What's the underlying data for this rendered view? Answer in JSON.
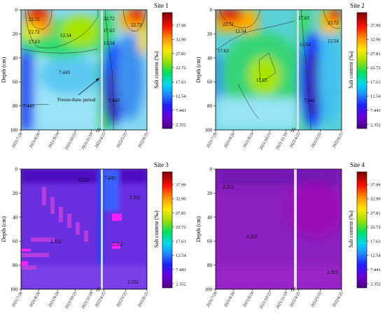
{
  "chart_data": [
    {
      "type": "heatmap",
      "title": "Site 1",
      "ylabel": "Depth (cm)",
      "ylim": [
        100,
        0
      ],
      "yticks": [
        0,
        20,
        40,
        60,
        80,
        100
      ],
      "xticks": [
        "2021/7/28",
        "2021/8/26",
        "2021/9/24",
        "2021/10/23",
        "2021/11/19",
        "2022/4/25",
        "2022/5/25",
        "2022/6/25"
      ],
      "colorbar_label": "Salt content (‰)",
      "colorbar_ticks": [
        37.99,
        32.9,
        27.81,
        22.72,
        17.63,
        12.54,
        7.443,
        2.352
      ],
      "contour_labels": [
        "22.72",
        "22.72",
        "17.63",
        "12.54",
        "22.72",
        "17.63",
        "22.72",
        "12.54",
        "7.443",
        "7.443",
        "7.443"
      ],
      "annotation": "Freeze-thaw period"
    },
    {
      "type": "heatmap",
      "title": "Site 2",
      "ylabel": "Depth (cm)",
      "ylim": [
        100,
        0
      ],
      "yticks": [
        0,
        20,
        40,
        60,
        80,
        100
      ],
      "xticks": [
        "2021/7/28",
        "2021/8/26",
        "2021/9/24",
        "2021/10/23",
        "2021/11/19",
        "2022/4/25",
        "2022/5/25",
        "2022/6/25"
      ],
      "colorbar_label": "Salt content (‰)",
      "colorbar_ticks": [
        37.99,
        32.9,
        27.81,
        22.72,
        17.63,
        12.54,
        7.443,
        2.352
      ],
      "contour_labels": [
        "22.72",
        "12.54",
        "17.63",
        "17.63",
        "17.63",
        "22.72",
        "12.54",
        "12.54",
        "7.443"
      ]
    },
    {
      "type": "heatmap",
      "title": "Site 3",
      "ylabel": "Depth (cm)",
      "ylim": [
        100,
        0
      ],
      "yticks": [
        0,
        20,
        40,
        60,
        80,
        100
      ],
      "xticks": [
        "2021/7/28",
        "2021/8/26",
        "2021/9/24",
        "2021/10/23",
        "2021/11/19",
        "2022/4/25",
        "2022/5/25",
        "2022/6/25"
      ],
      "colorbar_label": "Salt content (‰)",
      "colorbar_ticks": [
        37.99,
        32.9,
        27.81,
        22.72,
        17.63,
        12.54,
        7.443,
        2.352
      ],
      "contour_labels": [
        "2.352",
        "7.443",
        "2.352",
        "2.352",
        "2.352",
        "2.352"
      ]
    },
    {
      "type": "heatmap",
      "title": "Site 4",
      "ylabel": "Depth (cm)",
      "ylim": [
        100,
        0
      ],
      "yticks": [
        0,
        20,
        40,
        60,
        80,
        100
      ],
      "xticks": [
        "2021/7/28",
        "2021/8/26",
        "2021/9/24",
        "2021/10/23",
        "2021/11/19",
        "2022/4/25",
        "2022/5/25",
        "2022/6/25"
      ],
      "colorbar_label": "Salt content (‰)",
      "colorbar_ticks": [
        37.99,
        32.9,
        27.81,
        22.72,
        17.63,
        12.54,
        7.443,
        2.352
      ],
      "contour_labels": [
        "2.352",
        "2.352",
        "2.352"
      ]
    }
  ]
}
